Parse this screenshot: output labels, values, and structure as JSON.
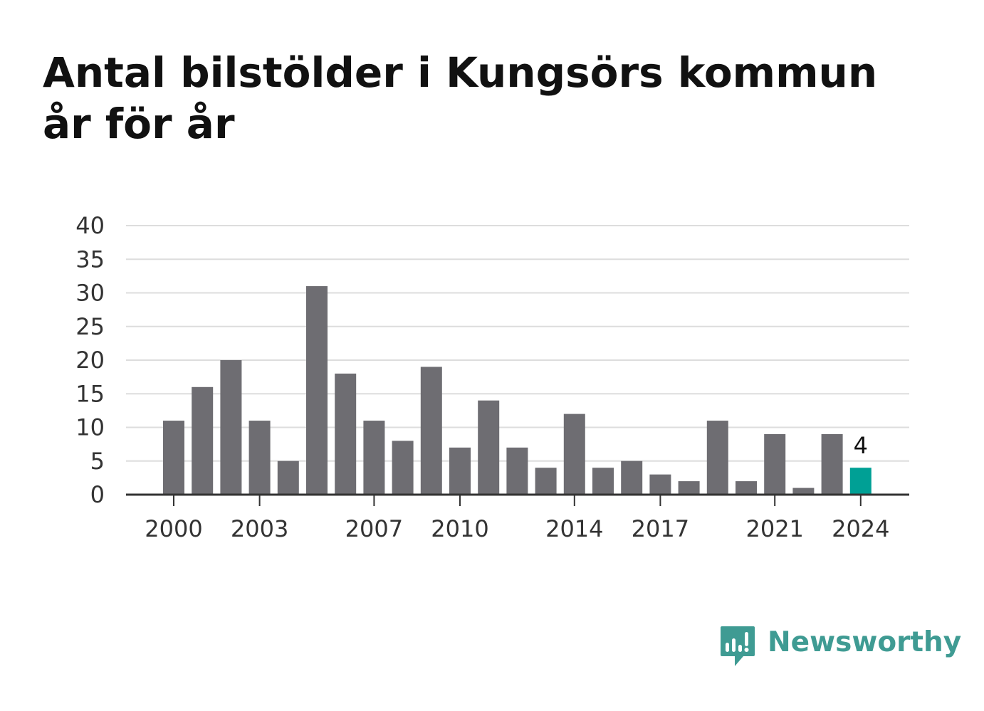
{
  "title": "Antal bilstölder i Kungsörs kommun år för år",
  "brand": {
    "name": "Newsworthy",
    "color": "#3f9b93",
    "icon": "newsworthy-bar-chart-speech-bubble-icon"
  },
  "colors": {
    "bar": "#6e6d72",
    "highlight": "#00a095",
    "grid": "#dddddd",
    "axis": "#333333"
  },
  "chart_data": {
    "type": "bar",
    "title": "Antal bilstölder i Kungsörs kommun år för år",
    "xlabel": "",
    "ylabel": "",
    "categories": [
      "2000",
      "2001",
      "2002",
      "2003",
      "2004",
      "2005",
      "2006",
      "2007",
      "2008",
      "2009",
      "2010",
      "2011",
      "2012",
      "2013",
      "2014",
      "2015",
      "2016",
      "2017",
      "2018",
      "2019",
      "2020",
      "2021",
      "2022",
      "2023",
      "2024"
    ],
    "values": [
      11,
      16,
      20,
      11,
      5,
      31,
      18,
      11,
      8,
      19,
      7,
      14,
      7,
      4,
      12,
      4,
      5,
      3,
      2,
      11,
      2,
      9,
      1,
      9,
      4
    ],
    "x_tick_labels": [
      "2000",
      "2003",
      "2007",
      "2010",
      "2014",
      "2017",
      "2021",
      "2024"
    ],
    "y_ticks": [
      0,
      5,
      10,
      15,
      20,
      25,
      30,
      35,
      40
    ],
    "ylim": [
      0,
      40
    ],
    "grid": true,
    "legend": "none",
    "highlight": {
      "category": "2024",
      "label": "4"
    }
  }
}
